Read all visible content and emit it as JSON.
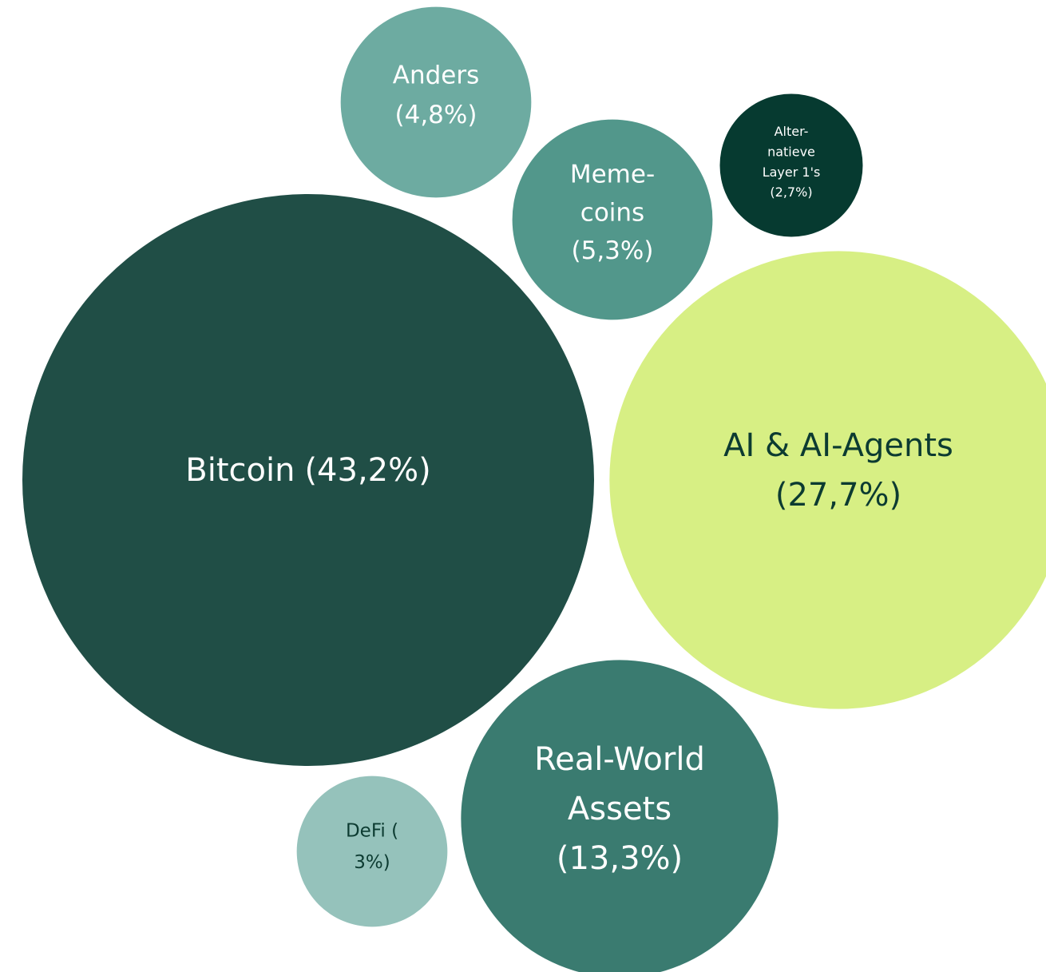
{
  "chart_data": {
    "type": "bubble",
    "categories": [
      [
        "Bitcoin"
      ],
      [
        "AI & AI-Agents"
      ],
      [
        "Real-World",
        "Assets"
      ],
      [
        "Meme-",
        "coins"
      ],
      [
        "Anders"
      ],
      [
        "DeFi ("
      ],
      [
        "Alter-",
        "natieve",
        "Layer 1's"
      ]
    ],
    "values": [
      43.2,
      27.7,
      13.3,
      5.3,
      4.8,
      3,
      2.7
    ],
    "value_labels": [
      "(43,2%)",
      "(27,7%)",
      "(13,3%)",
      "(5,3%)",
      "(4,8%)",
      "3%)",
      "(2,7%)"
    ],
    "colors": [
      "#204e46",
      "#d7ef84",
      "#3a7b70",
      "#52978b",
      "#6daba1",
      "#95c2bb",
      "#063a30"
    ]
  }
}
